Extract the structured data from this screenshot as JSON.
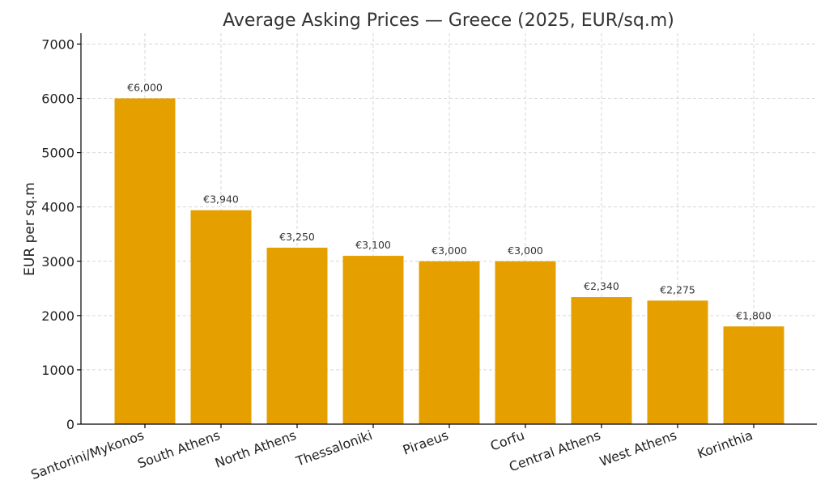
{
  "chart_data": {
    "type": "bar",
    "title": "Average Asking Prices — Greece (2025, EUR/sq.m)",
    "xlabel": "",
    "ylabel": "EUR per sq.m",
    "categories": [
      "Santorini/Mykonos",
      "South Athens",
      "North Athens",
      "Thessaloniki",
      "Piraeus",
      "Corfu",
      "Central Athens",
      "West Athens",
      "Korinthia"
    ],
    "values": [
      6000,
      3940,
      3250,
      3100,
      3000,
      3000,
      2340,
      2275,
      1800
    ],
    "data_labels": [
      "€6,000",
      "€3,940",
      "€3,250",
      "€3,100",
      "€3,000",
      "€3,000",
      "€2,340",
      "€2,275",
      "€1,800"
    ],
    "ylim": [
      0,
      7200
    ],
    "yticks": [
      0,
      1000,
      2000,
      3000,
      4000,
      5000,
      6000,
      7000
    ],
    "ytick_labels": [
      "0",
      "1000",
      "2000",
      "3000",
      "4000",
      "5000",
      "6000",
      "7000"
    ],
    "grid": true,
    "bar_color": "#E5A000"
  }
}
